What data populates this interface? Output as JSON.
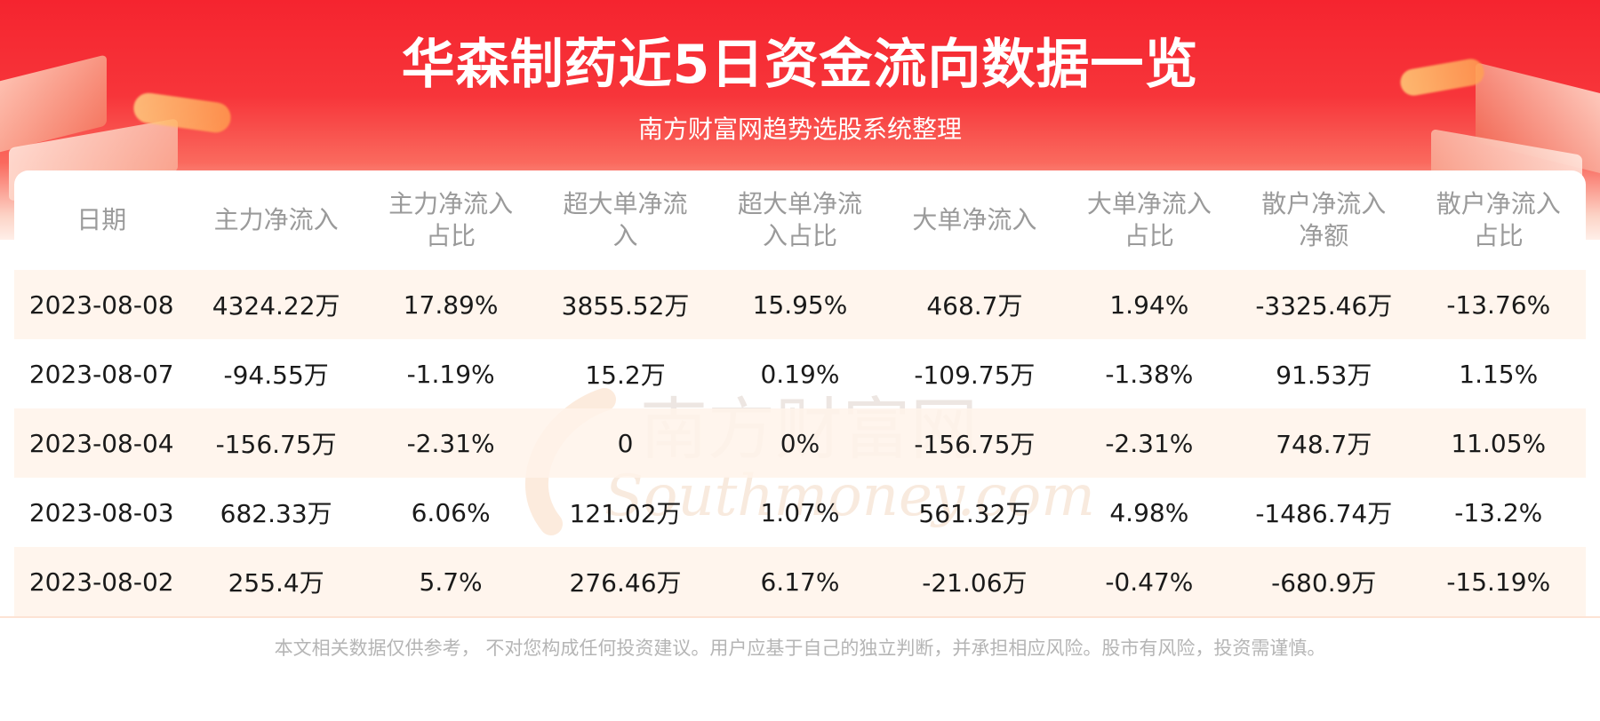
{
  "header": {
    "title": "华森制药近5日资金流向数据一览",
    "subtitle": "南方财富网趋势选股系统整理"
  },
  "watermark": {
    "cn": "南方财富网",
    "en": "Southmoney.com",
    "color": "#d9c9bf"
  },
  "table": {
    "headers": [
      [
        "日期"
      ],
      [
        "主力净流入"
      ],
      [
        "主力净流入",
        "占比"
      ],
      [
        "超大单净流",
        "入"
      ],
      [
        "超大单净流",
        "入占比"
      ],
      [
        "大单净流入"
      ],
      [
        "大单净流入",
        "占比"
      ],
      [
        "散户净流入",
        "净额"
      ],
      [
        "散户净流入",
        "占比"
      ]
    ],
    "rows": [
      [
        "2023-08-08",
        "4324.22万",
        "17.89%",
        "3855.52万",
        "15.95%",
        "468.7万",
        "1.94%",
        "-3325.46万",
        "-13.76%"
      ],
      [
        "2023-08-07",
        "-94.55万",
        "-1.19%",
        "15.2万",
        "0.19%",
        "-109.75万",
        "-1.38%",
        "91.53万",
        "1.15%"
      ],
      [
        "2023-08-04",
        "-156.75万",
        "-2.31%",
        "0",
        "0%",
        "-156.75万",
        "-2.31%",
        "748.7万",
        "11.05%"
      ],
      [
        "2023-08-03",
        "682.33万",
        "6.06%",
        "121.02万",
        "1.07%",
        "561.32万",
        "4.98%",
        "-1486.74万",
        "-13.2%"
      ],
      [
        "2023-08-02",
        "255.4万",
        "5.7%",
        "276.46万",
        "6.17%",
        "-21.06万",
        "-0.47%",
        "-680.9万",
        "-15.19%"
      ]
    ]
  },
  "footer": {
    "disclaimer": "本文相关数据仅供参考， 不对您构成任何投资建议。用户应基于自己的独立判断，并承担相应风险。股市有风险，投资需谨慎。"
  },
  "colors": {
    "banner_red": "#f5242f",
    "stripe": "#fff3ea",
    "header_text": "#9a9a9a"
  }
}
